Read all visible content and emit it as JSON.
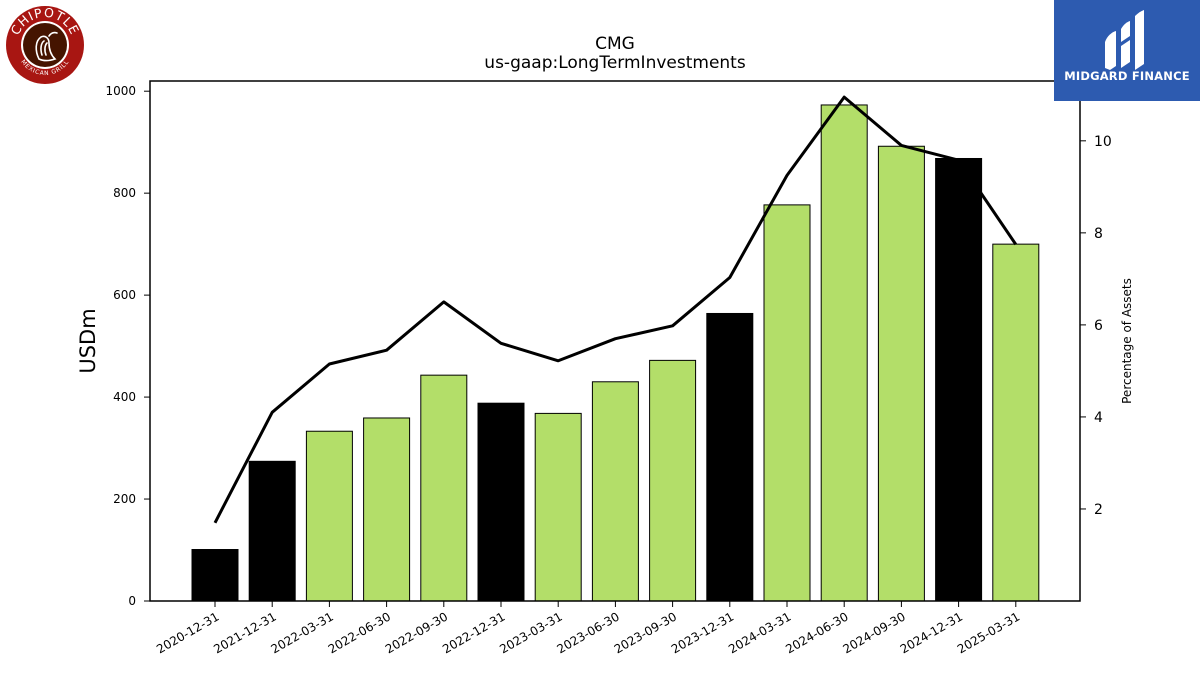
{
  "chart_data": {
    "type": "bar",
    "title": "CMG",
    "subtitle": "us-gaap:LongTermInvestments",
    "ylabel": "USDm",
    "y2label": "Percentage of Assets",
    "categories": [
      "2020-12-31",
      "2021-12-31",
      "2022-03-31",
      "2022-06-30",
      "2022-09-30",
      "2022-12-31",
      "2023-03-31",
      "2023-06-30",
      "2023-09-30",
      "2023-12-31",
      "2024-03-31",
      "2024-06-30",
      "2024-09-30",
      "2024-12-31",
      "2025-03-31"
    ],
    "series": [
      {
        "type": "bar",
        "values": [
          101,
          274,
          333,
          359,
          443,
          388,
          368,
          430,
          472,
          564,
          777,
          973,
          892,
          868,
          700
        ],
        "colors": [
          "#000000",
          "#000000",
          "#b3de69",
          "#b3de69",
          "#b3de69",
          "#000000",
          "#b3de69",
          "#b3de69",
          "#b3de69",
          "#000000",
          "#b3de69",
          "#b3de69",
          "#b3de69",
          "#000000",
          "#b3de69"
        ]
      },
      {
        "type": "line",
        "axis": "right",
        "color": "#000000",
        "values": [
          1.7,
          4.1,
          5.15,
          5.45,
          6.5,
          5.6,
          5.22,
          5.7,
          5.98,
          7.03,
          9.25,
          10.95,
          9.9,
          9.58,
          7.75
        ]
      }
    ],
    "ylim": [
      0,
      1020
    ],
    "y2lim": [
      0,
      11.3
    ],
    "yticks": [
      0,
      200,
      400,
      600,
      800,
      1000
    ],
    "y2ticks": [
      2,
      4,
      6,
      8,
      10
    ],
    "grid": false
  },
  "logos": {
    "left": {
      "top_text": "CHIPOTLE",
      "bottom_text": "MEXICAN GRILL",
      "ring_color": "#a81612",
      "inner_color": "#451400"
    },
    "right": {
      "text": "MIDGARD FINANCE",
      "bg_color": "#2d5bb0"
    }
  }
}
